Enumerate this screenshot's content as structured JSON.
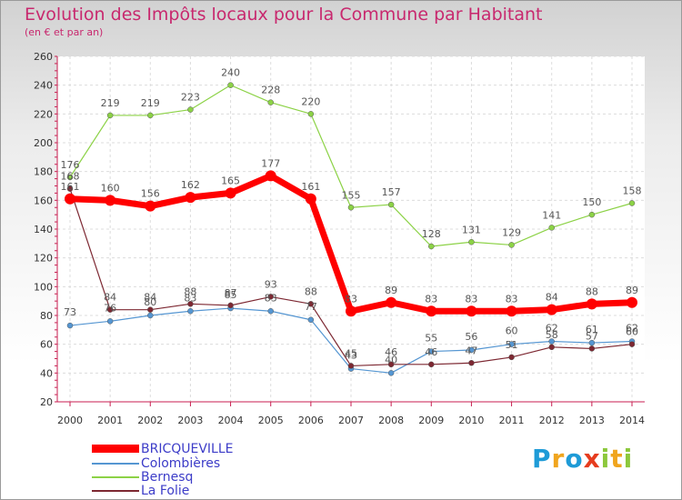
{
  "header": {
    "title": "Evolution des Impôts locaux pour la Commune par Habitant",
    "subtitle": "(en € et par an)"
  },
  "chart_data": {
    "type": "line",
    "title": "Evolution des Impôts locaux pour la Commune par Habitant",
    "subtitle": "(en € et par an)",
    "xlabel": "",
    "ylabel": "",
    "x": [
      2000,
      2001,
      2002,
      2003,
      2004,
      2005,
      2006,
      2007,
      2008,
      2009,
      2010,
      2011,
      2012,
      2013,
      2014
    ],
    "ylim": [
      20,
      260
    ],
    "yticks": [
      20,
      40,
      60,
      80,
      100,
      120,
      140,
      160,
      180,
      200,
      220,
      240,
      260
    ],
    "grid": true,
    "legend_position": "bottom-left",
    "series": [
      {
        "name": "BRICQUEVILLE",
        "color": "#ff0000",
        "values": [
          161,
          160,
          156,
          162,
          165,
          177,
          161,
          83,
          89,
          83,
          83,
          83,
          84,
          88,
          89
        ]
      },
      {
        "name": "Colombières",
        "color": "#5596d2",
        "values": [
          73,
          76,
          80,
          83,
          85,
          83,
          77,
          43,
          40,
          55,
          56,
          60,
          62,
          61,
          62
        ]
      },
      {
        "name": "Bernesq",
        "color": "#8cd246",
        "values": [
          176,
          219,
          219,
          223,
          240,
          228,
          220,
          155,
          157,
          128,
          131,
          129,
          141,
          150,
          158
        ]
      },
      {
        "name": "La Folie",
        "color": "#7d2832",
        "values": [
          168,
          84,
          84,
          88,
          87,
          93,
          88,
          45,
          46,
          46,
          47,
          51,
          58,
          57,
          60
        ]
      }
    ]
  },
  "brand": {
    "letters": [
      "P",
      "r",
      "o",
      "x",
      "i",
      "t",
      "i"
    ],
    "colors": [
      "#1e9bd7",
      "#f0a51e",
      "#1e9bd7",
      "#e63c1e",
      "#8cc83c",
      "#f0a51e",
      "#8cc83c"
    ]
  }
}
